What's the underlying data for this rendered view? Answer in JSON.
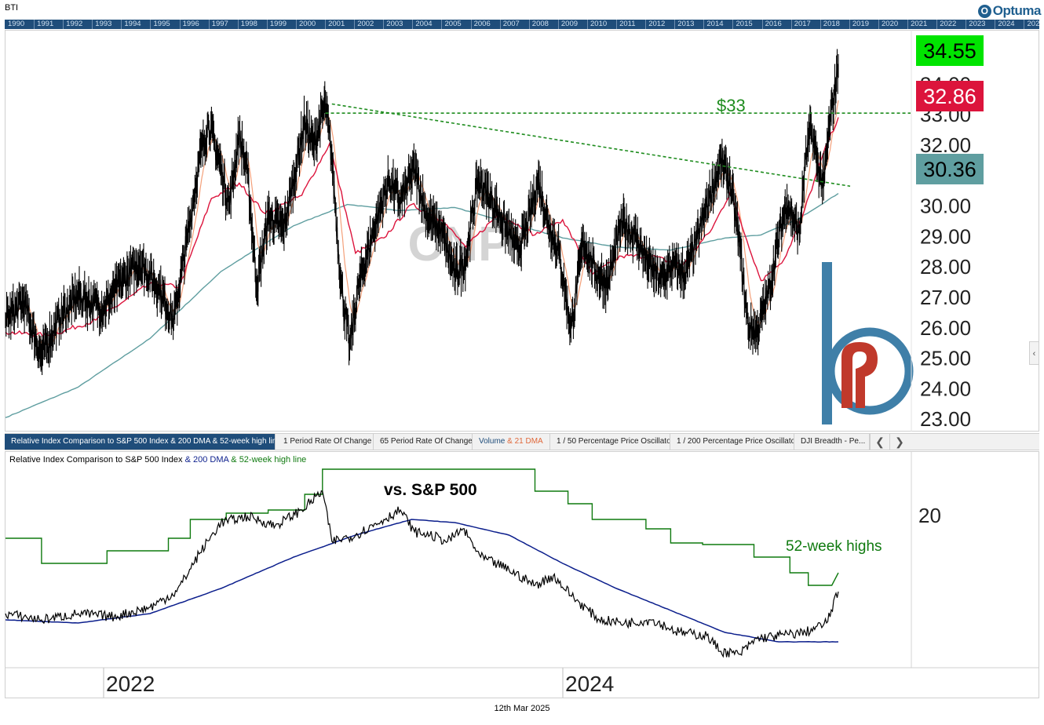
{
  "header": {
    "ticker": "BTI",
    "logo": "Optuma",
    "years": [
      "1990",
      "1991",
      "1992",
      "1993",
      "1994",
      "1995",
      "1996",
      "1997",
      "1998",
      "1999",
      "2000",
      "2001",
      "2002",
      "2003",
      "2004",
      "2005",
      "2006",
      "2007",
      "2008",
      "2009",
      "2010",
      "2011",
      "2012",
      "2013",
      "2014",
      "2015",
      "2016",
      "2017",
      "2018",
      "2019",
      "2020",
      "2021",
      "2022",
      "2023",
      "2024",
      "2025"
    ]
  },
  "watermark": "CNP",
  "chart_data": [
    {
      "type": "line",
      "ylim": [
        22.8,
        35.4
      ],
      "y_ticks": [
        "23.00",
        "24.00",
        "25.00",
        "26.00",
        "27.00",
        "28.00",
        "29.00",
        "30.00",
        "31.00",
        "32.00",
        "33.00",
        "34.00"
      ],
      "x_range": [
        "2021-05-01",
        "2025-03-12"
      ],
      "price_points": [
        [
          "2021-05-01",
          26.2
        ],
        [
          "2021-06-01",
          26.8
        ],
        [
          "2021-07-01",
          25.0
        ],
        [
          "2021-08-01",
          26.3
        ],
        [
          "2021-09-01",
          27.0
        ],
        [
          "2021-10-15",
          26.6
        ],
        [
          "2021-11-15",
          27.5
        ],
        [
          "2021-12-15",
          28.1
        ],
        [
          "2022-01-15",
          27.3
        ],
        [
          "2022-02-10",
          26.2
        ],
        [
          "2022-03-05",
          28.9
        ],
        [
          "2022-03-25",
          31.4
        ],
        [
          "2022-04-10",
          32.7
        ],
        [
          "2022-05-01",
          31.2
        ],
        [
          "2022-05-15",
          30.0
        ],
        [
          "2022-06-01",
          32.3
        ],
        [
          "2022-06-15",
          31.0
        ],
        [
          "2022-07-01",
          27.3
        ],
        [
          "2022-07-20",
          29.6
        ],
        [
          "2022-08-15",
          29.2
        ],
        [
          "2022-09-05",
          31.2
        ],
        [
          "2022-09-20",
          32.7
        ],
        [
          "2022-10-05",
          31.9
        ],
        [
          "2022-10-25",
          33.3
        ],
        [
          "2022-11-05",
          31.5
        ],
        [
          "2022-11-20",
          27.5
        ],
        [
          "2022-12-05",
          25.3
        ],
        [
          "2022-12-20",
          27.3
        ],
        [
          "2023-01-15",
          29.2
        ],
        [
          "2023-02-10",
          30.8
        ],
        [
          "2023-03-01",
          30.1
        ],
        [
          "2023-03-25",
          31.2
        ],
        [
          "2023-04-15",
          29.6
        ],
        [
          "2023-05-10",
          29.1
        ],
        [
          "2023-06-01",
          27.7
        ],
        [
          "2023-06-20",
          28.2
        ],
        [
          "2023-07-10",
          30.8
        ],
        [
          "2023-08-01",
          30.2
        ],
        [
          "2023-08-25",
          29.3
        ],
        [
          "2023-09-15",
          28.5
        ],
        [
          "2023-10-01",
          29.2
        ],
        [
          "2023-10-20",
          30.8
        ],
        [
          "2023-11-05",
          29.5
        ],
        [
          "2023-11-25",
          28.4
        ],
        [
          "2023-12-15",
          25.9
        ],
        [
          "2024-01-05",
          28.8
        ],
        [
          "2024-01-25",
          27.8
        ],
        [
          "2024-02-15",
          27.4
        ],
        [
          "2024-03-10",
          29.4
        ],
        [
          "2024-04-01",
          29.0
        ],
        [
          "2024-04-25",
          28.0
        ],
        [
          "2024-05-15",
          27.5
        ],
        [
          "2024-06-05",
          28.0
        ],
        [
          "2024-06-25",
          27.7
        ],
        [
          "2024-07-15",
          28.8
        ],
        [
          "2024-08-05",
          30.2
        ],
        [
          "2024-08-25",
          31.4
        ],
        [
          "2024-09-10",
          30.7
        ],
        [
          "2024-09-25",
          28.8
        ],
        [
          "2024-10-10",
          26.0
        ],
        [
          "2024-10-25",
          25.8
        ],
        [
          "2024-11-15",
          27.2
        ],
        [
          "2024-12-01",
          28.9
        ],
        [
          "2024-12-15",
          30.1
        ],
        [
          "2025-01-05",
          29.0
        ],
        [
          "2025-01-15",
          31.4
        ],
        [
          "2025-01-25",
          32.5
        ],
        [
          "2025-02-05",
          31.3
        ],
        [
          "2025-02-15",
          30.6
        ],
        [
          "2025-02-25",
          32.6
        ],
        [
          "2025-03-05",
          33.6
        ],
        [
          "2025-03-12",
          34.55
        ]
      ],
      "ma_fast_points": [
        [
          "2021-05-01",
          25.8
        ],
        [
          "2021-07-15",
          25.7
        ],
        [
          "2021-10-01",
          26.2
        ],
        [
          "2022-01-01",
          27.4
        ],
        [
          "2022-02-20",
          27.3
        ],
        [
          "2022-04-15",
          30.2
        ],
        [
          "2022-06-01",
          30.7
        ],
        [
          "2022-07-15",
          29.7
        ],
        [
          "2022-09-15",
          30.3
        ],
        [
          "2022-11-01",
          32.0
        ],
        [
          "2022-12-15",
          28.4
        ],
        [
          "2023-02-01",
          28.9
        ],
        [
          "2023-03-20",
          30.0
        ],
        [
          "2023-05-10",
          29.5
        ],
        [
          "2023-06-20",
          28.6
        ],
        [
          "2023-08-15",
          29.7
        ],
        [
          "2023-10-15",
          29.0
        ],
        [
          "2023-12-01",
          29.5
        ],
        [
          "2024-01-20",
          27.7
        ],
        [
          "2024-03-10",
          28.3
        ],
        [
          "2024-05-01",
          28.3
        ],
        [
          "2024-06-20",
          28.0
        ],
        [
          "2024-08-10",
          29.2
        ],
        [
          "2024-09-10",
          30.4
        ],
        [
          "2024-11-01",
          27.5
        ],
        [
          "2024-12-10",
          28.2
        ],
        [
          "2025-01-10",
          29.6
        ],
        [
          "2025-02-15",
          31.7
        ],
        [
          "2025-03-12",
          32.86
        ]
      ],
      "ma_slow_points": [
        [
          "2021-05-01",
          23.0
        ],
        [
          "2021-09-01",
          24.0
        ],
        [
          "2022-01-01",
          25.6
        ],
        [
          "2022-05-01",
          27.8
        ],
        [
          "2022-09-01",
          29.3
        ],
        [
          "2022-12-01",
          30.0
        ],
        [
          "2023-03-01",
          29.8
        ],
        [
          "2023-06-01",
          29.9
        ],
        [
          "2023-09-01",
          29.4
        ],
        [
          "2023-12-01",
          28.9
        ],
        [
          "2024-03-01",
          28.6
        ],
        [
          "2024-06-01",
          28.5
        ],
        [
          "2024-09-01",
          28.9
        ],
        [
          "2024-11-01",
          29.0
        ],
        [
          "2025-01-01",
          29.5
        ],
        [
          "2025-03-12",
          30.36
        ]
      ],
      "badges": [
        {
          "text": "34.55",
          "bg": "#00e400",
          "fg": "#000000"
        },
        {
          "text": "32.86",
          "bg": "#dc143c",
          "fg": "#ffffff"
        },
        {
          "text": "30.36",
          "bg": "#5f9ea0",
          "fg": "#000000"
        }
      ],
      "annotation_label": "$33",
      "horizontal_level": 33.0,
      "trendline": [
        [
          "2022-11-05",
          33.3
        ],
        [
          "2025-04-01",
          30.6
        ]
      ]
    },
    {
      "type": "line",
      "title": "Relative Index Comparison to S&P 500 Index & 200 DMA & 52-week high line",
      "title_parts": [
        "Relative Index Comparison to S&P 500 Index ",
        "& 200 DMA ",
        "& 52-week high line"
      ],
      "annotation": "vs. S&P 500",
      "label_52w": "52-week highs",
      "y_tick": "20",
      "x_tick_labels": [
        "2022",
        "2024"
      ],
      "relative_points": [
        [
          "2021-05-01",
          16.5
        ],
        [
          "2021-07-01",
          16.3
        ],
        [
          "2021-09-01",
          16.5
        ],
        [
          "2021-11-01",
          16.4
        ],
        [
          "2022-01-01",
          16.7
        ],
        [
          "2022-02-15",
          17.2
        ],
        [
          "2022-03-25",
          18.4
        ],
        [
          "2022-05-01",
          19.4
        ],
        [
          "2022-06-15",
          19.6
        ],
        [
          "2022-08-01",
          19.3
        ],
        [
          "2022-09-15",
          19.8
        ],
        [
          "2022-10-20",
          20.4
        ],
        [
          "2022-11-05",
          18.8
        ],
        [
          "2022-12-15",
          19.0
        ],
        [
          "2023-02-01",
          19.5
        ],
        [
          "2023-03-01",
          19.8
        ],
        [
          "2023-03-25",
          19.1
        ],
        [
          "2023-04-20",
          19.0
        ],
        [
          "2023-05-20",
          18.8
        ],
        [
          "2023-06-15",
          19.2
        ],
        [
          "2023-07-15",
          18.3
        ],
        [
          "2023-09-01",
          17.9
        ],
        [
          "2023-10-15",
          17.4
        ],
        [
          "2023-11-15",
          17.7
        ],
        [
          "2023-12-20",
          17.0
        ],
        [
          "2024-02-01",
          16.3
        ],
        [
          "2024-03-15",
          16.2
        ],
        [
          "2024-05-01",
          16.3
        ],
        [
          "2024-06-15",
          15.9
        ],
        [
          "2024-08-01",
          15.8
        ],
        [
          "2024-08-25",
          15.3
        ],
        [
          "2024-09-25",
          15.2
        ],
        [
          "2024-10-25",
          15.7
        ],
        [
          "2024-12-01",
          15.8
        ],
        [
          "2025-01-15",
          15.9
        ],
        [
          "2025-02-20",
          16.2
        ],
        [
          "2025-03-12",
          17.2
        ]
      ],
      "dma_points": [
        [
          "2021-05-01",
          16.3
        ],
        [
          "2021-09-01",
          16.2
        ],
        [
          "2022-01-01",
          16.5
        ],
        [
          "2022-05-01",
          17.3
        ],
        [
          "2022-09-01",
          18.3
        ],
        [
          "2022-12-15",
          19.0
        ],
        [
          "2023-03-20",
          19.5
        ],
        [
          "2023-06-01",
          19.4
        ],
        [
          "2023-09-01",
          19.0
        ],
        [
          "2023-12-01",
          18.1
        ],
        [
          "2024-03-01",
          17.3
        ],
        [
          "2024-06-01",
          16.6
        ],
        [
          "2024-09-01",
          15.9
        ],
        [
          "2024-12-01",
          15.6
        ],
        [
          "2025-03-12",
          15.6
        ]
      ],
      "high_line_steps": [
        [
          "2021-05-01",
          18.9
        ],
        [
          "2021-07-01",
          18.9
        ],
        [
          "2021-07-01",
          18.1
        ],
        [
          "2021-10-20",
          18.1
        ],
        [
          "2021-10-20",
          18.5
        ],
        [
          "2022-02-01",
          18.5
        ],
        [
          "2022-02-01",
          18.9
        ],
        [
          "2022-03-10",
          18.9
        ],
        [
          "2022-03-10",
          19.5
        ],
        [
          "2022-05-10",
          19.5
        ],
        [
          "2022-05-10",
          19.7
        ],
        [
          "2022-07-20",
          19.7
        ],
        [
          "2022-07-20",
          19.8
        ],
        [
          "2022-09-20",
          19.8
        ],
        [
          "2022-09-20",
          20.3
        ],
        [
          "2022-10-20",
          20.3
        ],
        [
          "2022-10-20",
          21.1
        ],
        [
          "2023-10-15",
          21.1
        ],
        [
          "2023-10-15",
          20.4
        ],
        [
          "2023-12-10",
          20.4
        ],
        [
          "2023-12-10",
          20.0
        ],
        [
          "2024-01-20",
          20.0
        ],
        [
          "2024-01-20",
          19.5
        ],
        [
          "2024-04-20",
          19.5
        ],
        [
          "2024-04-20",
          19.2
        ],
        [
          "2024-06-01",
          19.2
        ],
        [
          "2024-06-01",
          18.75
        ],
        [
          "2024-07-25",
          18.75
        ],
        [
          "2024-07-25",
          18.7
        ],
        [
          "2024-10-20",
          18.7
        ],
        [
          "2024-10-20",
          18.3
        ],
        [
          "2024-12-20",
          18.3
        ],
        [
          "2024-12-20",
          17.8
        ],
        [
          "2025-01-20",
          17.8
        ],
        [
          "2025-01-20",
          17.4
        ],
        [
          "2025-03-01",
          17.4
        ],
        [
          "2025-03-12",
          17.8
        ]
      ]
    }
  ],
  "tabs": [
    {
      "label": "Relative Index Comparison to S&P 500 Index & 200 DMA & 52-week high line"
    },
    {
      "label": "1 Period Rate Of Change"
    },
    {
      "label": "65 Period Rate Of Change"
    },
    {
      "label_main": "Volume",
      "label_extra": " & 21 DMA"
    },
    {
      "label": "1 / 50 Percentage Price Oscillator"
    },
    {
      "label": "1 / 200 Percentage Price Oscillator"
    },
    {
      "label": "DJI Breadth - Pe..."
    }
  ],
  "footer": {
    "date": "12th Mar 2025"
  },
  "colors": {
    "price": "#000000",
    "ma_fast": "#dc143c",
    "ma_slow": "#5f9ea0",
    "ma_mid": "#f4a07a",
    "annotation_green": "#1e8c1e",
    "dma_blue": "#0b1e8c",
    "high_green": "#0f7a0f",
    "yearbar": "#1f4d7a",
    "logo_blue": "#3f7fa8",
    "logo_red": "#c0392b"
  }
}
